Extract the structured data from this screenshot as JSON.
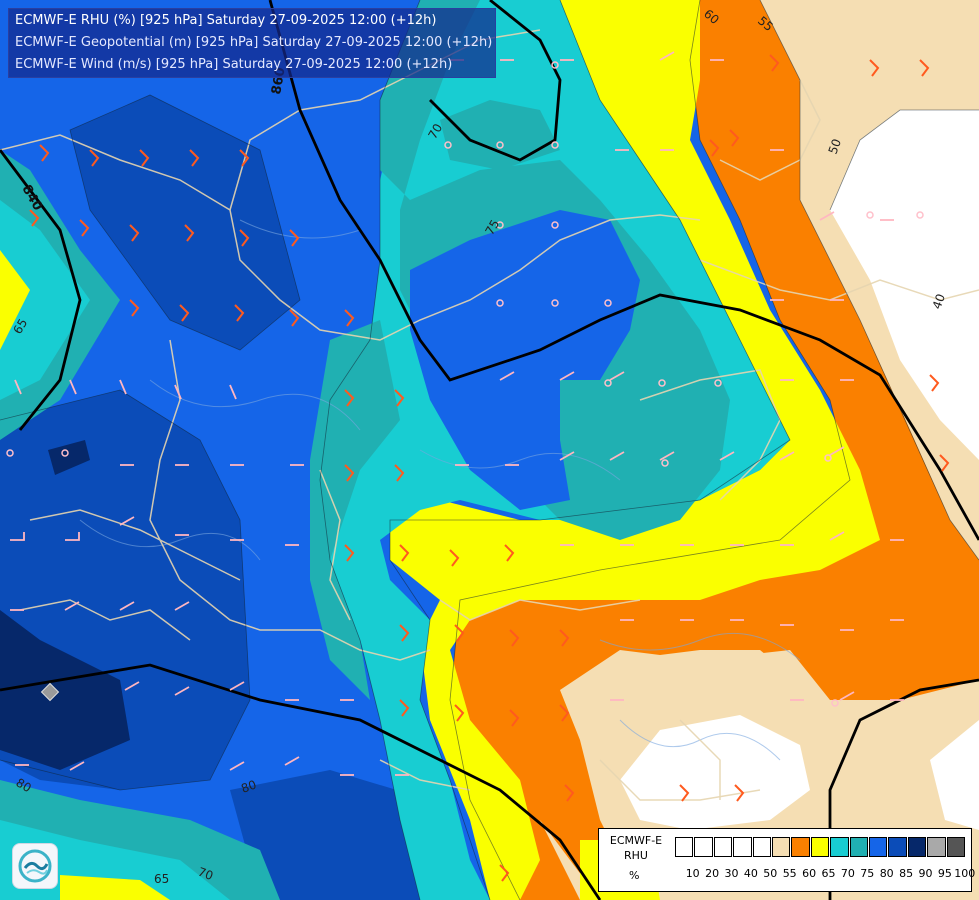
{
  "titles": {
    "line1": "ECMWF-E RHU (%) [925 hPa] Saturday 27-09-2025 12:00 (+12h)",
    "line2": "ECMWF-E Geopotential (m) [925 hPa] Saturday 27-09-2025 12:00 (+12h)",
    "line3": "ECMWF-E Wind (m/s) [925 hPa] Saturday 27-09-2025 12:00 (+12h)"
  },
  "legend": {
    "label_line1": "ECMWF-E",
    "label_line2": "RHU",
    "units": "%",
    "bins": [
      {
        "label": "10",
        "color": "#ffffff"
      },
      {
        "label": "20",
        "color": "#ffffff"
      },
      {
        "label": "30",
        "color": "#ffffff"
      },
      {
        "label": "40",
        "color": "#ffffff"
      },
      {
        "label": "50",
        "color": "#ffffff"
      },
      {
        "label": "55",
        "color": "#f5deb3"
      },
      {
        "label": "60",
        "color": "#fa8000"
      },
      {
        "label": "65",
        "color": "#faff00"
      },
      {
        "label": "70",
        "color": "#18cdd2"
      },
      {
        "label": "75",
        "color": "#20b0b2"
      },
      {
        "label": "80",
        "color": "#1565e8"
      },
      {
        "label": "85",
        "color": "#0b4cb8"
      },
      {
        "label": "90",
        "color": "#06286a"
      },
      {
        "label": "95",
        "color": "#a9a9a9"
      },
      {
        "label": "100",
        "color": "#555555"
      }
    ]
  },
  "contour_labels": {
    "rhu": [
      "60",
      "55",
      "50",
      "40",
      "70",
      "75",
      "65",
      "80",
      "80",
      "70",
      "65"
    ],
    "geopotential": [
      "860",
      "840"
    ]
  },
  "colors": {
    "background": "#1565e8",
    "geopotential_line": "#000000",
    "wind_barb_pink": "#ffb6c1",
    "wind_barb_orange": "#ff5a1e",
    "border_line": "#e6d5b0"
  },
  "logo": {
    "name": "ecmwf-wave-logo"
  }
}
